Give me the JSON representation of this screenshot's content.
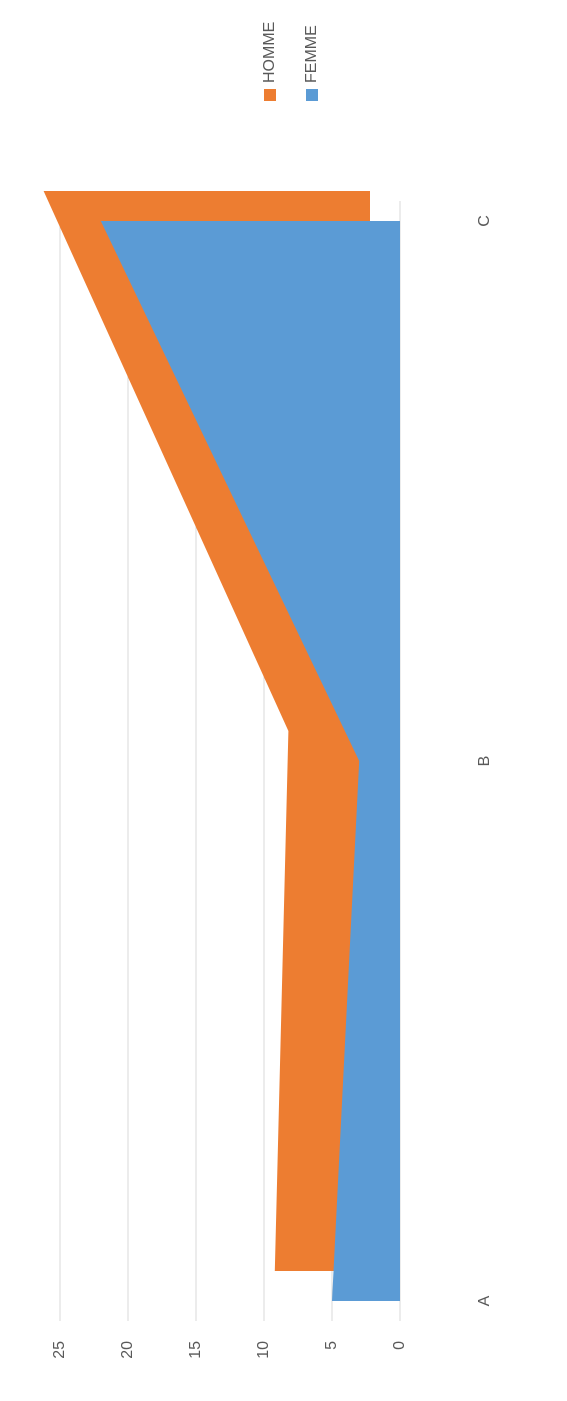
{
  "chart_data": {
    "type": "area",
    "categories": [
      "A",
      "B",
      "C"
    ],
    "series": [
      {
        "name": "HOMME",
        "color": "#ed7d31",
        "values": [
          7,
          6,
          24
        ]
      },
      {
        "name": "FEMME",
        "color": "#5b9bd5",
        "values": [
          5,
          3,
          22
        ]
      }
    ],
    "ylim": [
      0,
      25
    ],
    "yticks": [
      0,
      5,
      10,
      15,
      20,
      25
    ],
    "grid": true,
    "legend": "top"
  }
}
